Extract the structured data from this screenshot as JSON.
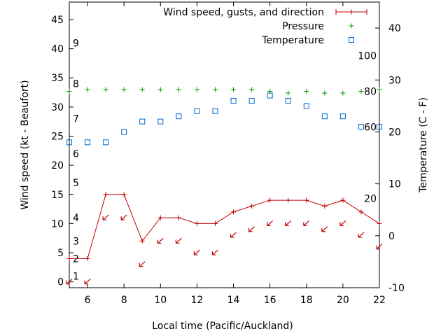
{
  "chart_data": {
    "type": "line",
    "xlabel": "Local time (Pacific/Auckland)",
    "ylabel": "Wind speed (kt - Beaufort)",
    "y2label": "Temperature (C - F)",
    "xlim": [
      5,
      22
    ],
    "ylim": [
      -1,
      48
    ],
    "y2lim": [
      -10,
      45
    ],
    "pressure_lim": [
      970,
      1130
    ],
    "x_ticks": [
      6,
      8,
      10,
      12,
      14,
      16,
      18,
      20,
      22
    ],
    "y_ticks": [
      0,
      5,
      10,
      15,
      20,
      25,
      30,
      35,
      40,
      45
    ],
    "y2_ticks": [
      -10,
      0,
      10,
      20,
      30,
      40
    ],
    "beaufort_labels": [
      {
        "label": "1",
        "kt": 1
      },
      {
        "label": "2",
        "kt": 4
      },
      {
        "label": "3",
        "kt": 7
      },
      {
        "label": "4",
        "kt": 11
      },
      {
        "label": "5",
        "kt": 17
      },
      {
        "label": "6",
        "kt": 22
      },
      {
        "label": "7",
        "kt": 28
      },
      {
        "label": "8",
        "kt": 34
      },
      {
        "label": "9",
        "kt": 41
      }
    ],
    "pressure_labels": [
      {
        "label": "20",
        "hpa": 1020,
        "side": "right"
      },
      {
        "label": "60",
        "hpa": 1060,
        "side": "right"
      },
      {
        "label": "80",
        "hpa": 1080,
        "side": "right"
      },
      {
        "label": "100",
        "hpa": 1100,
        "side": "right"
      }
    ],
    "series": [
      {
        "name": "Wind speed, gusts, and direction",
        "color": "#c00000",
        "x": [
          5,
          6,
          7,
          8,
          9,
          10,
          11,
          12,
          13,
          14,
          15,
          16,
          17,
          18,
          19,
          20,
          21,
          22
        ],
        "values": [
          4,
          4,
          15,
          15,
          7,
          11,
          11,
          10,
          10,
          12,
          13,
          14,
          14,
          14,
          13,
          14,
          12,
          10
        ],
        "direction_arrow_y": [
          0,
          0,
          11,
          11,
          3,
          7,
          7,
          5,
          5,
          8,
          9,
          10,
          10,
          10,
          9,
          10,
          8,
          6
        ]
      },
      {
        "name": "Pressure",
        "color": "#009900",
        "x": [
          5,
          6,
          7,
          8,
          9,
          10,
          11,
          12,
          13,
          14,
          15,
          16,
          17,
          18,
          19,
          20,
          21,
          22
        ],
        "values": [
          1080,
          1081,
          1081,
          1081,
          1081,
          1081,
          1081,
          1081,
          1081,
          1081,
          1081,
          1080,
          1079,
          1080,
          1079,
          1079,
          1080,
          1081
        ]
      },
      {
        "name": "Temperature",
        "color": "#0066cc",
        "x": [
          5,
          6,
          7,
          8,
          9,
          10,
          11,
          12,
          13,
          14,
          15,
          16,
          17,
          18,
          19,
          20,
          21,
          22
        ],
        "values": [
          18,
          18,
          18,
          20,
          22,
          22,
          23,
          24,
          24,
          26,
          26,
          27,
          26,
          25,
          23,
          23,
          21,
          21
        ]
      }
    ]
  }
}
